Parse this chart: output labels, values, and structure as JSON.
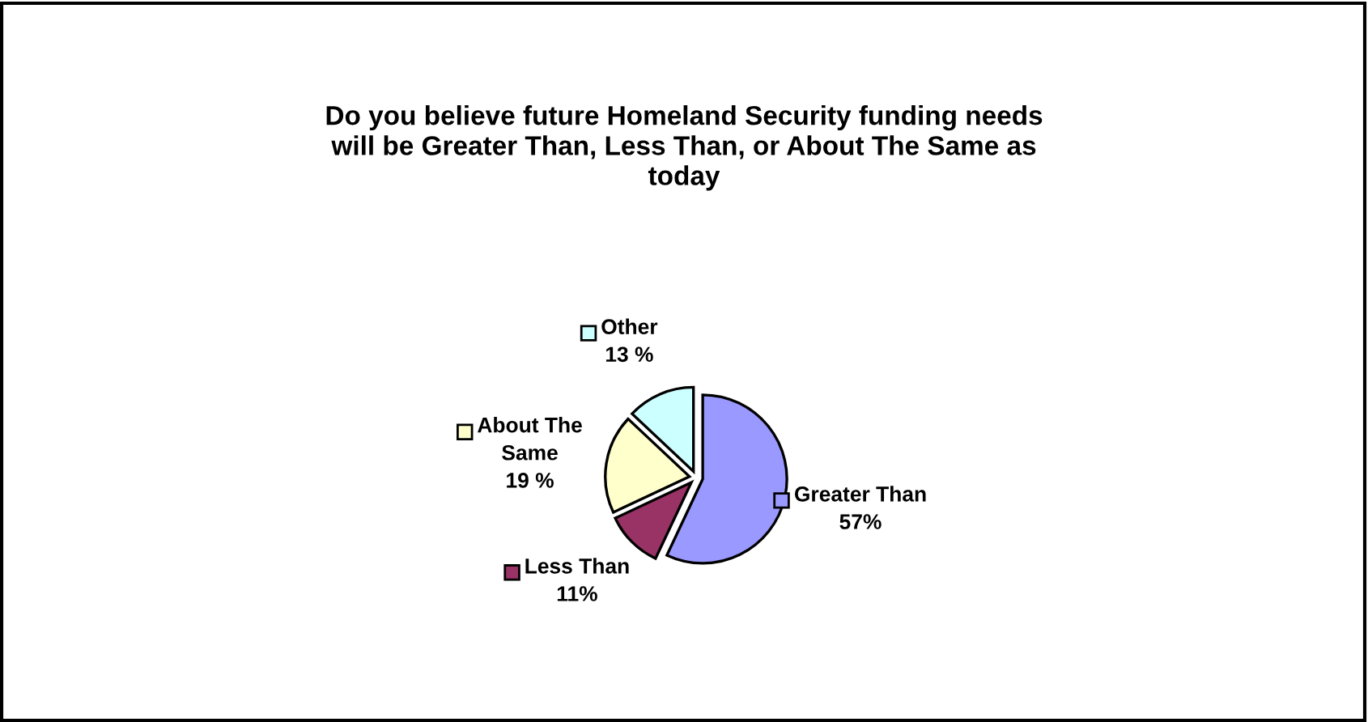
{
  "chart_data": {
    "type": "pie",
    "title": "Do you believe future Homeland Security funding needs\nwill be Greater Than, Less Than, or About The Same as\ntoday",
    "categories": [
      "Greater Than",
      "Less Than",
      "About The\nSame",
      "Other"
    ],
    "values": [
      57,
      11,
      19,
      13
    ],
    "value_labels": [
      "57%",
      "11%",
      "19 %",
      "13 %"
    ],
    "colors": [
      "#9999ff",
      "#993366",
      "#ffffcc",
      "#ccffff"
    ],
    "legend": "left"
  }
}
